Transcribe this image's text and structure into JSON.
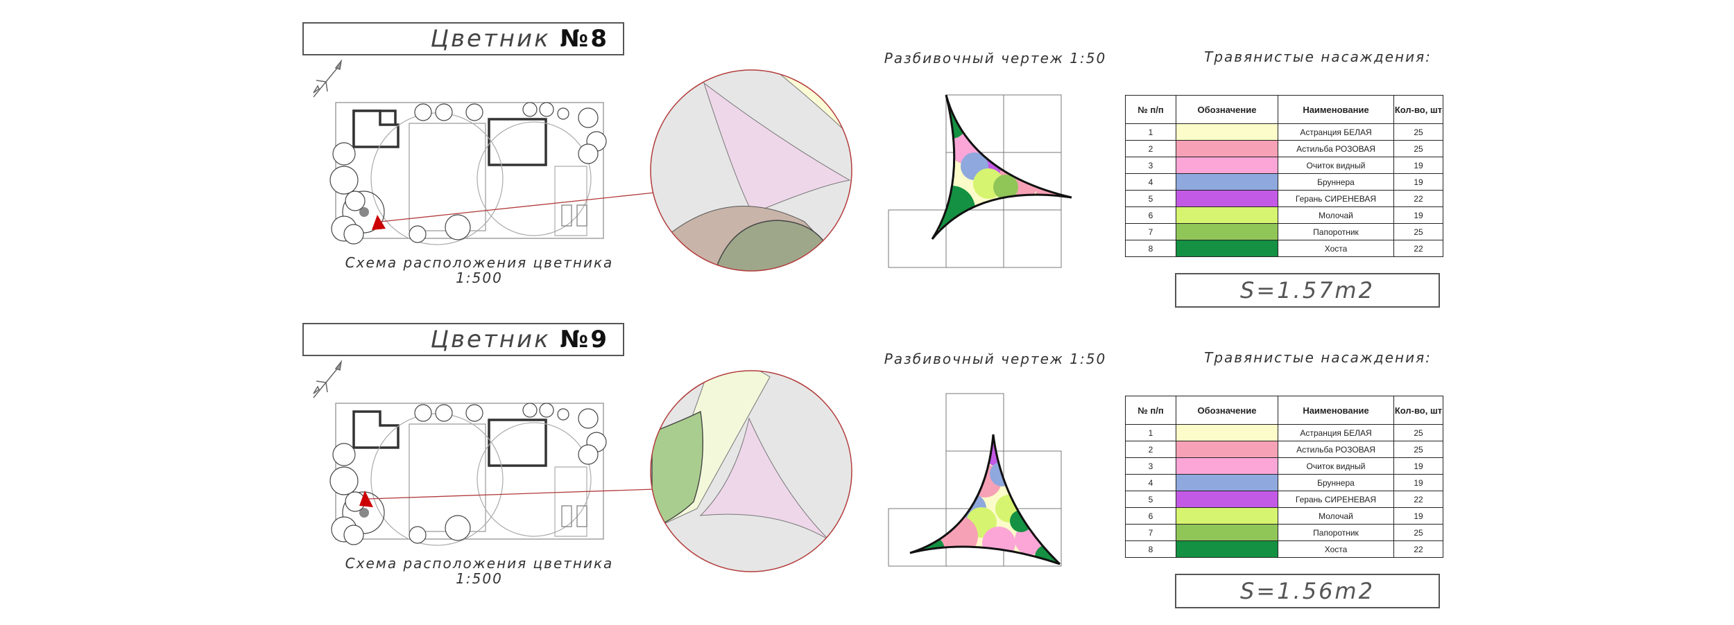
{
  "palette": {
    "c1": "#fbfcc9",
    "c2": "#f7a1b6",
    "c3": "#fba6d7",
    "c4": "#8fa8de",
    "c5": "#c35ae6",
    "c6": "#d6f46f",
    "c7": "#90c558",
    "c8": "#149142",
    "accent": "#cc0000"
  },
  "sheets": [
    {
      "title_prefix": "Цветник ",
      "title_number": "№8",
      "scheme_caption": "Схема расположения цветника",
      "scheme_scale": "1:500",
      "drawing_caption": "Разбивочный чертеж 1:50",
      "plants_caption": "Травянистые насаждения:",
      "table_headers": [
        "№ п/п",
        "Обозначение",
        "Наименование",
        "Кол-во, шт"
      ],
      "rows": [
        {
          "n": "1",
          "color": "#fbfcc9",
          "name": "Астранция БЕЛАЯ",
          "qty": "25"
        },
        {
          "n": "2",
          "color": "#f7a1b6",
          "name": "Астильба РОЗОВАЯ",
          "qty": "25"
        },
        {
          "n": "3",
          "color": "#fba6d7",
          "name": "Очиток видный",
          "qty": "19"
        },
        {
          "n": "4",
          "color": "#8fa8de",
          "name": "Бруннера",
          "qty": "19"
        },
        {
          "n": "5",
          "color": "#c35ae6",
          "name": "Герань СИРЕНЕВАЯ",
          "qty": "22"
        },
        {
          "n": "6",
          "color": "#d6f46f",
          "name": "Молочай",
          "qty": "19"
        },
        {
          "n": "7",
          "color": "#90c558",
          "name": "Папоротник",
          "qty": "25"
        },
        {
          "n": "8",
          "color": "#149142",
          "name": "Хоста",
          "qty": "22"
        }
      ],
      "area": "S=1.57m2"
    },
    {
      "title_prefix": "Цветник ",
      "title_number": "№9",
      "scheme_caption": "Схема расположения цветника",
      "scheme_scale": "1:500",
      "drawing_caption": "Разбивочный чертеж 1:50",
      "plants_caption": "Травянистые насаждения:",
      "table_headers": [
        "№ п/п",
        "Обозначение",
        "Наименование",
        "Кол-во, шт"
      ],
      "rows": [
        {
          "n": "1",
          "color": "#fbfcc9",
          "name": "Астранция БЕЛАЯ",
          "qty": "25"
        },
        {
          "n": "2",
          "color": "#f7a1b6",
          "name": "Астильба РОЗОВАЯ",
          "qty": "25"
        },
        {
          "n": "3",
          "color": "#fba6d7",
          "name": "Очиток видный",
          "qty": "19"
        },
        {
          "n": "4",
          "color": "#8fa8de",
          "name": "Бруннера",
          "qty": "19"
        },
        {
          "n": "5",
          "color": "#c35ae6",
          "name": "Герань СИРЕНЕВАЯ",
          "qty": "22"
        },
        {
          "n": "6",
          "color": "#d6f46f",
          "name": "Молочай",
          "qty": "19"
        },
        {
          "n": "7",
          "color": "#90c558",
          "name": "Папоротник",
          "qty": "25"
        },
        {
          "n": "8",
          "color": "#149142",
          "name": "Хоста",
          "qty": "22"
        }
      ],
      "area": "S=1.56m2"
    }
  ]
}
